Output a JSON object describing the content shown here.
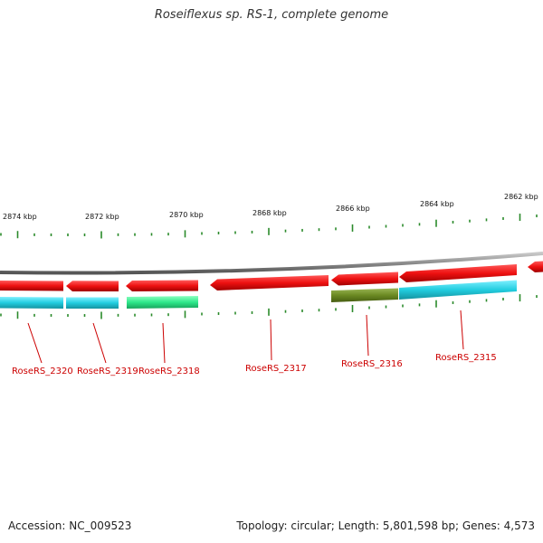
{
  "title": "Roseiflexus sp. RS-1, complete genome",
  "footer": {
    "accession": "Accession: NC_009523",
    "topology": "Topology: circular; Length: 5,801,598 bp; Genes: 4,573"
  },
  "colors": {
    "backbone": "#8c8c8c",
    "tick": "#2a8a2a",
    "gene_red": "#ee1111",
    "gene_cyan": "#22cde0",
    "gene_green": "#2ee88a",
    "gene_olive": "#6b8a22",
    "label": "#cc0000"
  },
  "kbp_labels": [
    "2874 kbp",
    "2872 kbp",
    "2870 kbp",
    "2868 kbp",
    "2866 kbp",
    "2864 kbp",
    "2862 kbp"
  ],
  "genes": [
    {
      "locus": "RoseRS_2320",
      "strand": "reverse",
      "cog_color": "gene_cyan"
    },
    {
      "locus": "RoseRS_2319",
      "strand": "reverse",
      "cog_color": "gene_cyan"
    },
    {
      "locus": "RoseRS_2318",
      "strand": "reverse",
      "cog_color": "gene_green"
    },
    {
      "locus": "RoseRS_2317",
      "strand": "reverse",
      "cog_color": ""
    },
    {
      "locus": "RoseRS_2316",
      "strand": "reverse",
      "cog_color": "gene_olive"
    },
    {
      "locus": "RoseRS_2315",
      "strand": "reverse",
      "cog_color": "gene_cyan"
    }
  ]
}
